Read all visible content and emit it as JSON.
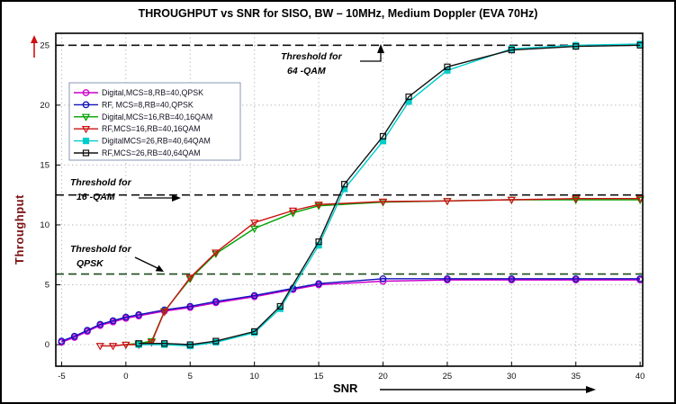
{
  "chart_data": {
    "type": "line",
    "title": "THROUGHPUT vs SNR for SISO, BW – 10MHz, Medium Doppler (EVA 70Hz)",
    "xlabel": "SNR",
    "ylabel": "Throughput",
    "xlim": [
      -5.45,
      40.2
    ],
    "ylim": [
      -1.8,
      26
    ],
    "x_ticks": [
      -5,
      0,
      5,
      10,
      15,
      20,
      25,
      30,
      35,
      40
    ],
    "y_ticks": [
      0,
      5,
      10,
      15,
      20,
      25
    ],
    "grid": true,
    "legend_position": "top-left",
    "thresholds": [
      {
        "label": "64-QAM",
        "value": 25,
        "color": "#111111"
      },
      {
        "label": "16-QAM",
        "value": 12.5,
        "color": "#111111"
      },
      {
        "label": "QPSK",
        "value": 5.9,
        "color": "#1c4a1c"
      }
    ],
    "annotations": [
      {
        "lines": [
          "Threshold for",
          "64 -QAM"
        ]
      },
      {
        "lines": [
          "Threshold for",
          "16 -QAM"
        ]
      },
      {
        "lines": [
          "Threshold for",
          "QPSK"
        ]
      }
    ],
    "series": [
      {
        "name": "Digital,MCS=8,RB=40,QPSK",
        "color": "#cc00cc",
        "marker": "circle",
        "fill": "none",
        "points": [
          [
            -5,
            0.2
          ],
          [
            -4,
            0.6
          ],
          [
            -3,
            1.1
          ],
          [
            -2,
            1.6
          ],
          [
            -1,
            1.9
          ],
          [
            0,
            2.2
          ],
          [
            1,
            2.4
          ],
          [
            3,
            2.8
          ],
          [
            5,
            3.1
          ],
          [
            7,
            3.5
          ],
          [
            10,
            4.0
          ],
          [
            13,
            4.6
          ],
          [
            15,
            5.0
          ],
          [
            20,
            5.3
          ],
          [
            25,
            5.4
          ],
          [
            30,
            5.4
          ],
          [
            35,
            5.4
          ],
          [
            40,
            5.4
          ]
        ]
      },
      {
        "name": "RF, MCS=8,RB=40,QPSK",
        "color": "#1111bb",
        "marker": "circle",
        "fill": "none",
        "points": [
          [
            -5,
            0.3
          ],
          [
            -4,
            0.7
          ],
          [
            -3,
            1.2
          ],
          [
            -2,
            1.7
          ],
          [
            -1,
            2.0
          ],
          [
            0,
            2.3
          ],
          [
            1,
            2.5
          ],
          [
            3,
            2.9
          ],
          [
            5,
            3.2
          ],
          [
            7,
            3.6
          ],
          [
            10,
            4.1
          ],
          [
            13,
            4.7
          ],
          [
            15,
            5.1
          ],
          [
            20,
            5.5
          ],
          [
            25,
            5.5
          ],
          [
            30,
            5.5
          ],
          [
            35,
            5.5
          ],
          [
            40,
            5.5
          ]
        ]
      },
      {
        "name": "Digital,MCS=16,RB=40,16QAM",
        "color": "#00a000",
        "marker": "triangle-down",
        "fill": "none",
        "points": [
          [
            0,
            0
          ],
          [
            1,
            0.1
          ],
          [
            2,
            0.3
          ],
          [
            3,
            2.8
          ],
          [
            5,
            5.5
          ],
          [
            7,
            7.6
          ],
          [
            10,
            9.7
          ],
          [
            13,
            11.0
          ],
          [
            15,
            11.6
          ],
          [
            20,
            11.9
          ],
          [
            25,
            12.0
          ],
          [
            30,
            12.1
          ],
          [
            35,
            12.1
          ],
          [
            40,
            12.1
          ]
        ]
      },
      {
        "name": "RF,MCS=16,RB=40,16QAM",
        "color": "#cc1111",
        "marker": "triangle-down",
        "fill": "none",
        "points": [
          [
            -2,
            -0.1
          ],
          [
            -1,
            -0.1
          ],
          [
            0,
            0
          ],
          [
            1,
            0
          ],
          [
            2,
            0.2
          ],
          [
            3,
            2.75
          ],
          [
            5,
            5.6
          ],
          [
            7,
            7.7
          ],
          [
            10,
            10.2
          ],
          [
            13,
            11.2
          ],
          [
            15,
            11.7
          ],
          [
            20,
            11.95
          ],
          [
            25,
            12.0
          ],
          [
            30,
            12.1
          ],
          [
            35,
            12.2
          ],
          [
            40,
            12.2
          ]
        ]
      },
      {
        "name": "DigitalMCS=26,RB=40,64QAM",
        "color": "#00cccc",
        "marker": "square",
        "fill": "self",
        "points": [
          [
            1,
            0
          ],
          [
            3,
            0
          ],
          [
            5,
            -0.1
          ],
          [
            7,
            0.2
          ],
          [
            10,
            1.0
          ],
          [
            12,
            3.0
          ],
          [
            15,
            8.3
          ],
          [
            17,
            13.0
          ],
          [
            20,
            17.0
          ],
          [
            22,
            20.3
          ],
          [
            25,
            22.9
          ],
          [
            30,
            24.7
          ],
          [
            35,
            25.0
          ],
          [
            40,
            25.1
          ]
        ]
      },
      {
        "name": "RF,MCS=26,RB=40,64QAM",
        "color": "#111111",
        "marker": "square",
        "fill": "none",
        "points": [
          [
            1,
            0.1
          ],
          [
            3,
            0.1
          ],
          [
            5,
            0
          ],
          [
            7,
            0.3
          ],
          [
            10,
            1.1
          ],
          [
            12,
            3.2
          ],
          [
            15,
            8.6
          ],
          [
            17,
            13.4
          ],
          [
            20,
            17.4
          ],
          [
            22,
            20.7
          ],
          [
            25,
            23.2
          ],
          [
            30,
            24.6
          ],
          [
            35,
            24.9
          ],
          [
            40,
            25.0
          ]
        ]
      }
    ]
  }
}
